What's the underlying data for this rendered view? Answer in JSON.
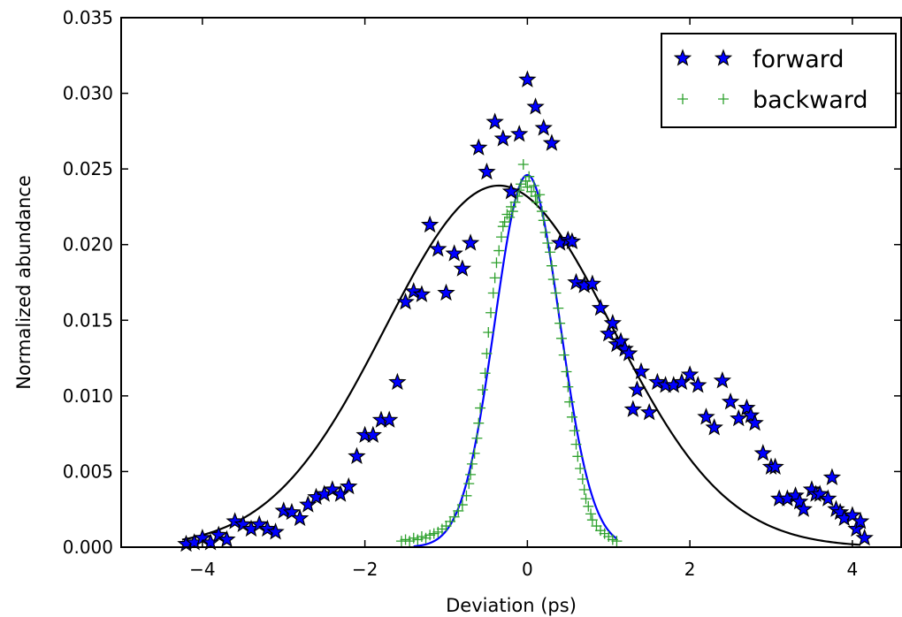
{
  "chart_data": {
    "type": "scatter",
    "title": "",
    "xlabel": "Deviation (ps)",
    "ylabel": "Normalized abundance",
    "xlim": [
      -5,
      4.6
    ],
    "ylim": [
      0,
      0.035
    ],
    "xticks": [
      -4,
      -2,
      0,
      2,
      4
    ],
    "xtick_labels": [
      "−4",
      "−2",
      "0",
      "2",
      "4"
    ],
    "yticks": [
      0,
      0.005,
      0.01,
      0.015,
      0.02,
      0.025,
      0.03,
      0.035
    ],
    "ytick_labels": [
      "0.000",
      "0.005",
      "0.010",
      "0.015",
      "0.020",
      "0.025",
      "0.030",
      "0.035"
    ],
    "grid": false,
    "legend": {
      "placement": "top-right"
    },
    "series": [
      {
        "name": "forward",
        "marker": "star",
        "color": "#0000ff",
        "edge_color": "#000000",
        "points": [
          [
            -4.2,
            0.0002
          ],
          [
            -4.1,
            0.0003
          ],
          [
            -4.0,
            0.0006
          ],
          [
            -3.9,
            0.0003
          ],
          [
            -3.8,
            0.0008
          ],
          [
            -3.7,
            0.0005
          ],
          [
            -3.6,
            0.0017
          ],
          [
            -3.5,
            0.0015
          ],
          [
            -3.4,
            0.0012
          ],
          [
            -3.3,
            0.0015
          ],
          [
            -3.2,
            0.0012
          ],
          [
            -3.1,
            0.001
          ],
          [
            -3.0,
            0.0024
          ],
          [
            -2.9,
            0.0023
          ],
          [
            -2.8,
            0.0019
          ],
          [
            -2.7,
            0.0028
          ],
          [
            -2.6,
            0.0033
          ],
          [
            -2.5,
            0.0035
          ],
          [
            -2.4,
            0.0038
          ],
          [
            -2.3,
            0.0035
          ],
          [
            -2.2,
            0.004
          ],
          [
            -2.1,
            0.006
          ],
          [
            -2.0,
            0.0074
          ],
          [
            -1.9,
            0.0074
          ],
          [
            -1.8,
            0.0084
          ],
          [
            -1.7,
            0.0084
          ],
          [
            -1.6,
            0.0109
          ],
          [
            -1.5,
            0.0162
          ],
          [
            -1.4,
            0.0169
          ],
          [
            -1.3,
            0.0167
          ],
          [
            -1.2,
            0.0213
          ],
          [
            -1.1,
            0.0197
          ],
          [
            -1.0,
            0.0168
          ],
          [
            -0.9,
            0.0194
          ],
          [
            -0.8,
            0.0184
          ],
          [
            -0.7,
            0.0201
          ],
          [
            -0.6,
            0.0264
          ],
          [
            -0.5,
            0.0248
          ],
          [
            -0.4,
            0.0281
          ],
          [
            -0.3,
            0.027
          ],
          [
            -0.2,
            0.0235
          ],
          [
            -0.1,
            0.0273
          ],
          [
            0.0,
            0.0309
          ],
          [
            0.1,
            0.0291
          ],
          [
            0.2,
            0.0277
          ],
          [
            0.3,
            0.0267
          ],
          [
            0.4,
            0.0201
          ],
          [
            0.5,
            0.0203
          ],
          [
            0.55,
            0.0202
          ],
          [
            0.6,
            0.0175
          ],
          [
            0.7,
            0.0173
          ],
          [
            0.8,
            0.0174
          ],
          [
            0.9,
            0.0158
          ],
          [
            1.0,
            0.0141
          ],
          [
            1.05,
            0.0148
          ],
          [
            1.1,
            0.0134
          ],
          [
            1.15,
            0.0136
          ],
          [
            1.2,
            0.0131
          ],
          [
            1.25,
            0.0128
          ],
          [
            1.3,
            0.0091
          ],
          [
            1.35,
            0.0104
          ],
          [
            1.4,
            0.0116
          ],
          [
            1.5,
            0.0089
          ],
          [
            1.6,
            0.0109
          ],
          [
            1.7,
            0.0107
          ],
          [
            1.8,
            0.0107
          ],
          [
            1.9,
            0.0109
          ],
          [
            2.0,
            0.0114
          ],
          [
            2.1,
            0.0107
          ],
          [
            2.2,
            0.0086
          ],
          [
            2.3,
            0.0079
          ],
          [
            2.4,
            0.011
          ],
          [
            2.5,
            0.0096
          ],
          [
            2.6,
            0.0085
          ],
          [
            2.7,
            0.0092
          ],
          [
            2.75,
            0.0087
          ],
          [
            2.8,
            0.0082
          ],
          [
            2.9,
            0.0062
          ],
          [
            3.0,
            0.0053
          ],
          [
            3.05,
            0.0053
          ],
          [
            3.1,
            0.0032
          ],
          [
            3.2,
            0.0032
          ],
          [
            3.3,
            0.0034
          ],
          [
            3.35,
            0.003
          ],
          [
            3.4,
            0.0025
          ],
          [
            3.5,
            0.0038
          ],
          [
            3.55,
            0.0035
          ],
          [
            3.6,
            0.0035
          ],
          [
            3.7,
            0.0032
          ],
          [
            3.75,
            0.0046
          ],
          [
            3.8,
            0.0025
          ],
          [
            3.85,
            0.0023
          ],
          [
            3.9,
            0.0019
          ],
          [
            4.0,
            0.0021
          ],
          [
            4.05,
            0.0012
          ],
          [
            4.1,
            0.0017
          ],
          [
            4.15,
            0.0006
          ]
        ]
      },
      {
        "name": "backward",
        "marker": "plus",
        "color": "#2ca02c",
        "points": [
          [
            -1.55,
            0.0004
          ],
          [
            -1.5,
            0.0005
          ],
          [
            -1.45,
            0.0004
          ],
          [
            -1.4,
            0.0006
          ],
          [
            -1.35,
            0.0005
          ],
          [
            -1.3,
            0.0007
          ],
          [
            -1.25,
            0.0006
          ],
          [
            -1.2,
            0.0008
          ],
          [
            -1.15,
            0.0009
          ],
          [
            -1.1,
            0.001
          ],
          [
            -1.05,
            0.0012
          ],
          [
            -1.0,
            0.0014
          ],
          [
            -0.95,
            0.0017
          ],
          [
            -0.9,
            0.002
          ],
          [
            -0.85,
            0.0024
          ],
          [
            -0.8,
            0.0028
          ],
          [
            -0.75,
            0.0034
          ],
          [
            -0.72,
            0.0042
          ],
          [
            -0.7,
            0.0048
          ],
          [
            -0.68,
            0.0055
          ],
          [
            -0.65,
            0.0062
          ],
          [
            -0.62,
            0.0072
          ],
          [
            -0.6,
            0.0082
          ],
          [
            -0.58,
            0.0092
          ],
          [
            -0.55,
            0.0104
          ],
          [
            -0.52,
            0.0115
          ],
          [
            -0.5,
            0.0128
          ],
          [
            -0.48,
            0.0142
          ],
          [
            -0.45,
            0.0155
          ],
          [
            -0.42,
            0.0168
          ],
          [
            -0.4,
            0.0178
          ],
          [
            -0.38,
            0.0188
          ],
          [
            -0.35,
            0.0196
          ],
          [
            -0.32,
            0.0205
          ],
          [
            -0.3,
            0.0212
          ],
          [
            -0.28,
            0.0215
          ],
          [
            -0.25,
            0.022
          ],
          [
            -0.22,
            0.0218
          ],
          [
            -0.2,
            0.0225
          ],
          [
            -0.18,
            0.0222
          ],
          [
            -0.15,
            0.0228
          ],
          [
            -0.12,
            0.0232
          ],
          [
            -0.1,
            0.0236
          ],
          [
            -0.08,
            0.024
          ],
          [
            -0.05,
            0.0253
          ],
          [
            -0.02,
            0.0242
          ],
          [
            0.0,
            0.0238
          ],
          [
            0.02,
            0.0245
          ],
          [
            0.05,
            0.0235
          ],
          [
            0.08,
            0.0239
          ],
          [
            0.1,
            0.0232
          ],
          [
            0.12,
            0.0228
          ],
          [
            0.15,
            0.0233
          ],
          [
            0.18,
            0.0222
          ],
          [
            0.2,
            0.0216
          ],
          [
            0.22,
            0.0208
          ],
          [
            0.25,
            0.0201
          ],
          [
            0.28,
            0.0195
          ],
          [
            0.3,
            0.0186
          ],
          [
            0.32,
            0.0177
          ],
          [
            0.35,
            0.0168
          ],
          [
            0.38,
            0.0158
          ],
          [
            0.4,
            0.0148
          ],
          [
            0.42,
            0.0138
          ],
          [
            0.45,
            0.0127
          ],
          [
            0.48,
            0.0116
          ],
          [
            0.5,
            0.0106
          ],
          [
            0.52,
            0.0096
          ],
          [
            0.55,
            0.0086
          ],
          [
            0.58,
            0.0077
          ],
          [
            0.6,
            0.0068
          ],
          [
            0.62,
            0.006
          ],
          [
            0.65,
            0.0052
          ],
          [
            0.68,
            0.0045
          ],
          [
            0.7,
            0.0038
          ],
          [
            0.72,
            0.0032
          ],
          [
            0.75,
            0.0027
          ],
          [
            0.78,
            0.0022
          ],
          [
            0.8,
            0.0018
          ],
          [
            0.85,
            0.0014
          ],
          [
            0.9,
            0.0011
          ],
          [
            0.95,
            0.0009
          ],
          [
            1.0,
            0.0007
          ],
          [
            1.05,
            0.0005
          ],
          [
            1.1,
            0.0004
          ]
        ]
      }
    ],
    "fits": [
      {
        "series": "forward",
        "color": "#000000",
        "mu": -0.35,
        "sigma": 1.4,
        "amplitude": 0.0239,
        "x_range": [
          -4.25,
          4.1
        ]
      },
      {
        "series": "backward",
        "color": "#0000ff",
        "mu": 0.0,
        "sigma": 0.4,
        "amplitude": 0.0246,
        "x_range": [
          -1.4,
          1.1
        ]
      }
    ]
  }
}
